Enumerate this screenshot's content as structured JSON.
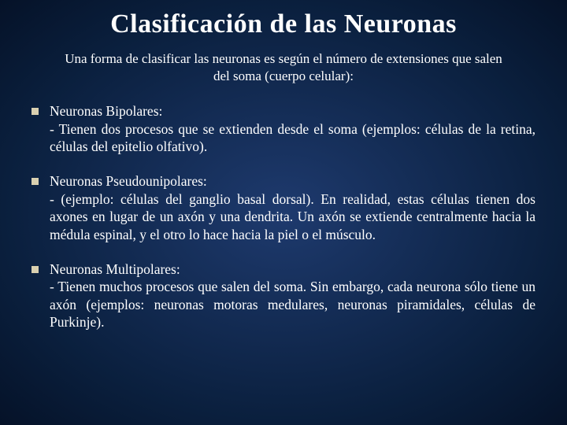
{
  "background": {
    "gradient_center": "#1e3a6e",
    "gradient_mid": "#0a1f3d",
    "gradient_edge": "#051228"
  },
  "title": "Clasificación de las Neuronas",
  "subtitle": "Una forma de clasificar las neuronas es según el número de extensiones que salen del soma (cuerpo celular):",
  "bullets": [
    {
      "heading": "Neuronas Bipolares:",
      "desc": "  - Tienen dos procesos que se extienden desde el soma (ejemplos: células de la retina, células del epitelio olfativo)."
    },
    {
      "heading": "Neuronas Pseudounipolares:",
      "desc": " - (ejemplo: células del ganglio basal dorsal). En realidad, estas células tienen dos axones en lugar de un axón y una dendrita. Un axón se extiende centralmente hacia la médula espinal, y el otro lo hace hacia la piel o el músculo."
    },
    {
      "heading": "Neuronas Multipolares:",
      "desc": "  - Tienen muchos procesos que salen del soma. Sin embargo, cada neurona sólo tiene un axón (ejemplos: neuronas motoras medulares, neuronas piramidales, células de Purkinje)."
    }
  ],
  "style": {
    "title_fontsize": 34,
    "subtitle_fontsize": 17,
    "body_fontsize": 17.5,
    "text_color": "#ffffff",
    "bullet_color": "#d9d0b0",
    "font_family": "Georgia, Times New Roman, serif"
  }
}
